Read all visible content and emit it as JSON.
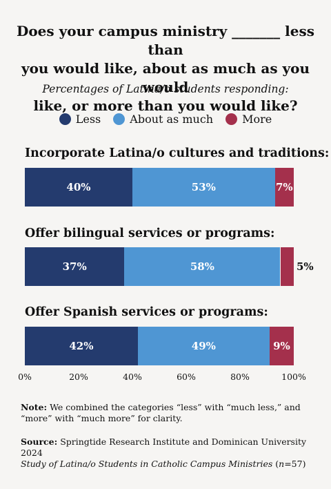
{
  "title_lines": [
    "Does your campus ministry _______ less than",
    "you would like, about as much as you would",
    "like, or more than you would like?"
  ],
  "subtitle": "Percentages of Latina/o students responding:",
  "legend": [
    {
      "label": "Less",
      "color": "#243b6e"
    },
    {
      "label": "About as much",
      "color": "#4f96d3"
    },
    {
      "label": "More",
      "color": "#a4304c"
    }
  ],
  "chart_data": {
    "type": "bar",
    "orientation": "horizontal",
    "stacked": true,
    "categories": [
      "Incorporate Latina/o cultures and traditions:",
      "Offer bilingual services or programs:",
      "Offer Spanish services or programs:"
    ],
    "series": [
      {
        "name": "Less",
        "values": [
          40,
          37,
          42
        ],
        "labels": [
          "40%",
          "37%",
          "42%"
        ],
        "color": "#243b6e"
      },
      {
        "name": "About as much",
        "values": [
          53,
          58,
          49
        ],
        "labels": [
          "53%",
          "58%",
          "49%"
        ],
        "color": "#4f96d3"
      },
      {
        "name": "More",
        "values": [
          7,
          5,
          9
        ],
        "labels": [
          "7%",
          "5%",
          "9%"
        ],
        "color": "#a4304c"
      }
    ],
    "xlim": [
      0,
      100
    ],
    "xticks": [
      "0%",
      "20%",
      "40%",
      "60%",
      "80%",
      "100%"
    ],
    "xtick_values": [
      0,
      20,
      40,
      60,
      80,
      100
    ],
    "grid": false,
    "legend_position": "top-center"
  },
  "note": {
    "label": "Note:",
    "text": " We combined the categories “less” with “much less,” and “more” with “much more” for clarity."
  },
  "source": {
    "label": "Source:",
    "text": " Springtide Research Institute and Dominican University 2024",
    "line2_italic": "Study of Latina/o Students in Catholic Campus Ministries",
    "line2_rest_a": " (",
    "line2_n": "n",
    "line2_rest_b": "=57)"
  }
}
